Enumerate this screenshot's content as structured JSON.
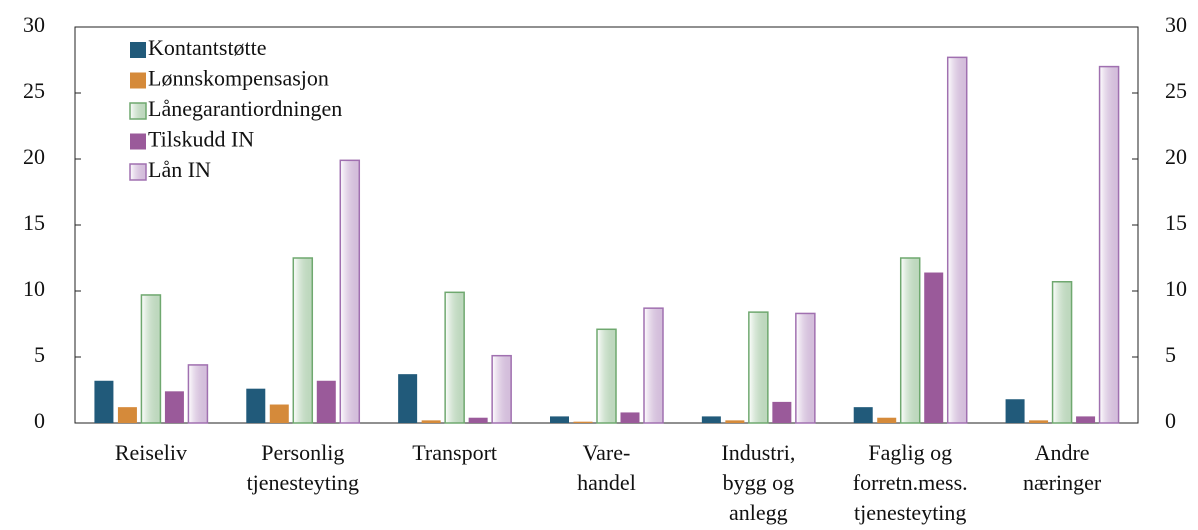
{
  "chart_data": {
    "type": "bar",
    "categories": [
      [
        "Reiseliv"
      ],
      [
        "Personlig",
        "tjenesteyting"
      ],
      [
        "Transport"
      ],
      [
        "Vare-",
        "handel"
      ],
      [
        "Industri,",
        "bygg og",
        "anlegg"
      ],
      [
        "Faglig og",
        "forretn.mess.",
        "tjenesteyting"
      ],
      [
        "Andre",
        "næringer"
      ]
    ],
    "series": [
      {
        "name": "Kontantstøtte",
        "color": "#215a7a",
        "values": [
          3.2,
          2.6,
          3.7,
          0.5,
          0.5,
          1.2,
          1.8
        ]
      },
      {
        "name": "Lønnskompensasjon",
        "color": "#d58a3a",
        "values": [
          1.2,
          1.4,
          0.2,
          0.1,
          0.2,
          0.4,
          0.2
        ]
      },
      {
        "name": "Lånegarantiordningen",
        "color": "#6fa86f",
        "gradient": true,
        "values": [
          9.7,
          12.5,
          9.9,
          7.1,
          8.4,
          12.5,
          10.7
        ]
      },
      {
        "name": "Tilskudd IN",
        "color": "#9a5a9a",
        "values": [
          2.4,
          3.2,
          0.4,
          0.8,
          1.6,
          11.4,
          0.5
        ]
      },
      {
        "name": "Lån IN",
        "color": "#a070b0",
        "gradient": true,
        "values": [
          4.4,
          19.9,
          5.1,
          8.7,
          8.3,
          27.7,
          27.0
        ]
      }
    ],
    "ylim": [
      0,
      30
    ],
    "yticks": [
      0,
      5,
      10,
      15,
      20,
      25,
      30
    ],
    "y2lim": [
      0,
      30
    ],
    "y2ticks": [
      0,
      5,
      10,
      15,
      20,
      25,
      30
    ],
    "legend": "top-left"
  }
}
